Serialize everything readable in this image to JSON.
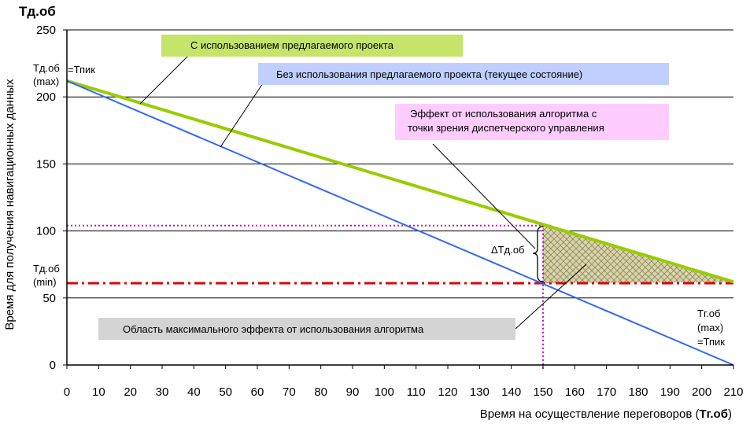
{
  "chart_data": {
    "type": "line",
    "title": "Тд.об",
    "xlabel": "Время на осуществление переговоров (",
    "xlabel_bold": "Тг.об",
    "xlabel_close": ")",
    "ylabel": "Время для получения навигационных данных",
    "xlim": [
      0,
      210
    ],
    "ylim": [
      0,
      250
    ],
    "xticks": [
      0,
      10,
      20,
      30,
      40,
      50,
      60,
      70,
      80,
      90,
      100,
      110,
      120,
      130,
      140,
      150,
      160,
      170,
      180,
      190,
      200,
      210
    ],
    "yticks": [
      0,
      50,
      100,
      150,
      200,
      250
    ],
    "grid": "horizontal",
    "series": [
      {
        "name": "С использованием предлагаемого проекта",
        "color": "#99cc00",
        "x": [
          0,
          210
        ],
        "y": [
          212,
          62
        ]
      },
      {
        "name": "Без использования предлагаемого проекта (текущее состояние)",
        "color": "#3366ff",
        "x": [
          0,
          210
        ],
        "y": [
          212,
          0
        ]
      }
    ],
    "reference_lines": {
      "t_min": {
        "y": 61,
        "color": "#dd0000"
      },
      "h_dotted": {
        "y": 104,
        "x_end": 150,
        "color": "#cc00cc"
      },
      "v_dotted": {
        "x": 150,
        "color": "#cc00cc"
      }
    },
    "annotations": {
      "callout_green": {
        "text": "С использованием предлагаемого проекта",
        "bg": "#c4e46a"
      },
      "callout_blue": {
        "text": "Без использования предлагаемого проекта (текущее состояние)",
        "bg": "#c0cfff"
      },
      "callout_pink_1": {
        "text": "Эффект от использования алгоритма с",
        "bg": "#ffccff"
      },
      "callout_pink_2": {
        "text": "точки зрения диспетчерского управления"
      },
      "callout_gray": {
        "text": "Область максимального эффекта от использования алгоритма",
        "bg": "#d4d4d4"
      },
      "delta": "ΔТд.об",
      "tmax_1": "Тд.об",
      "tmax_2": "(max)",
      "tmax_3": "=Тпик",
      "tmin_1": "Тд.об",
      "tmin_2": "(min)",
      "tgmax_1": "Тг.об",
      "tgmax_2": "(max)",
      "tgmax_3": "=Тпик"
    }
  }
}
